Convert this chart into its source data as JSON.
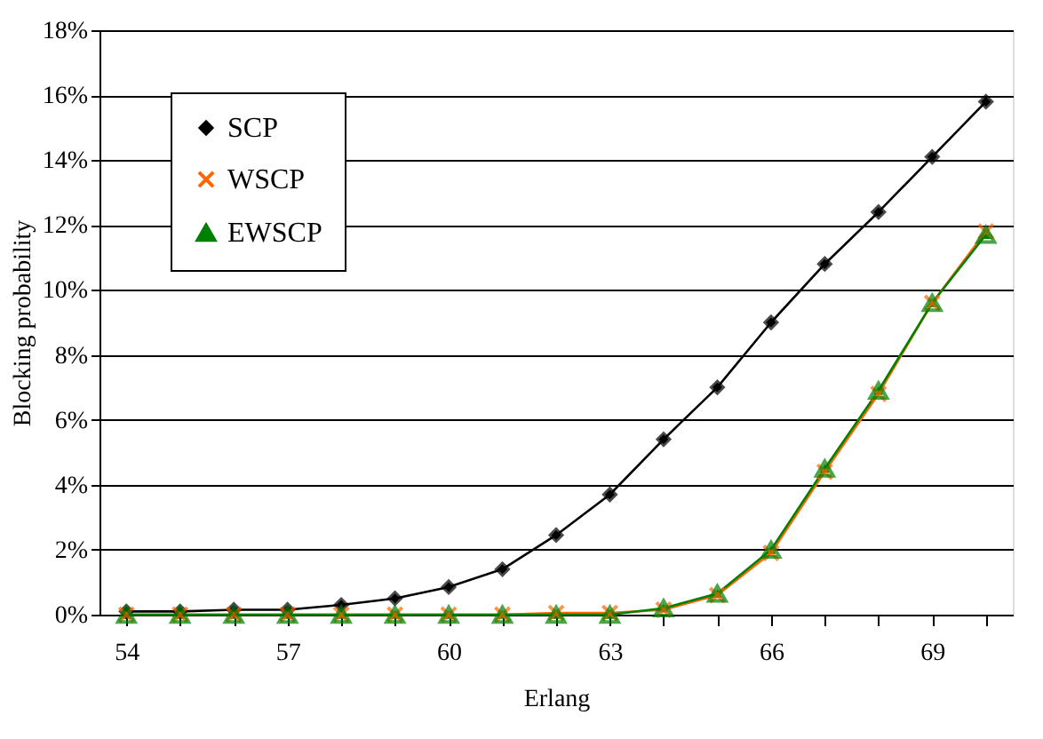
{
  "chart_data": {
    "type": "line",
    "xlabel": "Erlang",
    "ylabel": "Blocking probability",
    "x": [
      54,
      55,
      56,
      57,
      58,
      59,
      60,
      61,
      62,
      63,
      64,
      65,
      66,
      67,
      68,
      69,
      70
    ],
    "series": [
      {
        "name": "SCP",
        "color": "#000000",
        "marker": "diamond",
        "values": [
          0.1,
          0.1,
          0.15,
          0.15,
          0.3,
          0.5,
          0.85,
          1.4,
          2.45,
          3.7,
          5.4,
          7.0,
          9.0,
          10.8,
          12.4,
          14.1,
          15.8
        ]
      },
      {
        "name": "WSCP",
        "color": "#ff6600",
        "marker": "cross",
        "values": [
          0,
          0,
          0,
          0,
          0,
          0,
          0,
          0,
          0.05,
          0.05,
          0.15,
          0.6,
          1.9,
          4.4,
          6.8,
          9.6,
          11.8
        ]
      },
      {
        "name": "EWSCP",
        "color": "#008000",
        "marker": "triangle",
        "values": [
          0,
          0,
          0,
          0,
          0,
          0,
          0,
          0,
          0,
          0,
          0.2,
          0.65,
          2.0,
          4.5,
          6.9,
          9.6,
          11.7
        ]
      }
    ],
    "xlim": [
      53.5,
      70.5
    ],
    "xticks": [
      54,
      {
        "value": 55,
        "label": null
      },
      {
        "value": 56,
        "label": null
      },
      57,
      {
        "value": 58,
        "label": null
      },
      {
        "value": 59,
        "label": null
      },
      60,
      {
        "value": 61,
        "label": null
      },
      {
        "value": 62,
        "label": null
      },
      63,
      {
        "value": 64,
        "label": null
      },
      {
        "value": 65,
        "label": null
      },
      66,
      {
        "value": 67,
        "label": null
      },
      {
        "value": 68,
        "label": null
      },
      69,
      {
        "value": 70,
        "label": null
      }
    ],
    "ylim": [
      0,
      18
    ],
    "yticks": [
      {
        "value": 0,
        "label": "0%"
      },
      {
        "value": 2,
        "label": "2%"
      },
      {
        "value": 4,
        "label": "4%"
      },
      {
        "value": 6,
        "label": "6%"
      },
      {
        "value": 8,
        "label": "8%"
      },
      {
        "value": 10,
        "label": "10%"
      },
      {
        "value": 12,
        "label": "12%"
      },
      {
        "value": 14,
        "label": "14%"
      },
      {
        "value": 16,
        "label": "16%"
      },
      {
        "value": 18,
        "label": "18%"
      }
    ],
    "grid": "y",
    "legend": "top left",
    "line_style": "solid"
  }
}
